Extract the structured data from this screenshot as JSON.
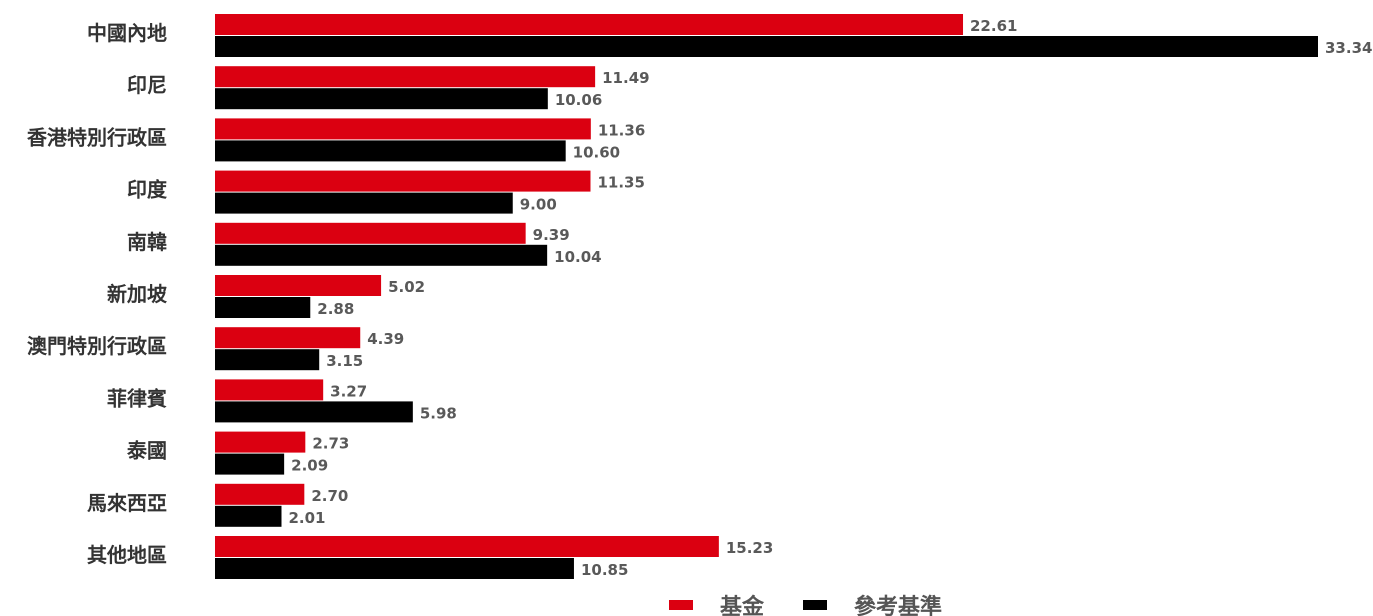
{
  "chart_data": {
    "type": "bar",
    "orientation": "horizontal",
    "categories": [
      "中國內地",
      "印尼",
      "香港特別行政區",
      "印度",
      "南韓",
      "新加坡",
      "澳門特別行政區",
      "菲律賓",
      "泰國",
      "馬來西亞",
      "其他地區"
    ],
    "series": [
      {
        "name": "基金",
        "color": "#DB0011",
        "values": [
          22.61,
          11.49,
          11.36,
          11.35,
          9.39,
          5.02,
          4.39,
          3.27,
          2.73,
          2.7,
          15.23
        ],
        "labels": [
          "22.61",
          "11.49",
          "11.36",
          "11.35",
          "9.39",
          "5.02",
          "4.39",
          "3.27",
          "2.73",
          "2.70",
          "15.23"
        ]
      },
      {
        "name": "參考基準",
        "color": "#000000",
        "values": [
          33.34,
          10.06,
          10.6,
          9.0,
          10.04,
          2.88,
          3.15,
          5.98,
          2.09,
          2.01,
          10.85
        ],
        "labels": [
          "33.34",
          "10.06",
          "10.60",
          "9.00",
          "10.04",
          "2.88",
          "3.15",
          "5.98",
          "2.09",
          "2.01",
          "10.85"
        ]
      }
    ],
    "xlim": [
      0,
      33.34
    ],
    "grid": false,
    "legend": "bottom-center"
  }
}
